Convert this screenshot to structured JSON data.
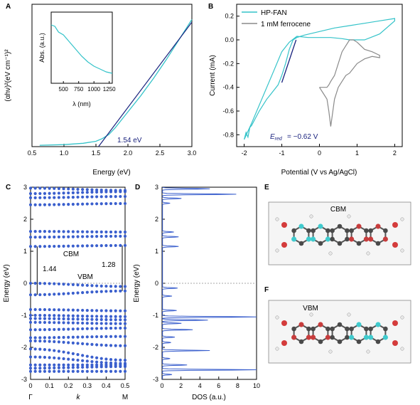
{
  "panels": {
    "A": "A",
    "B": "B",
    "C": "C",
    "D": "D",
    "E": "E",
    "F": "F"
  },
  "colors": {
    "cyan": "#34c3c9",
    "navy": "#1a237e",
    "gray": "#8a8a8a",
    "band_blue": "#3a5fcd",
    "carbon": "#4a4a4a",
    "oxygen": "#d43c3c",
    "hydrogen": "#e8e8e8",
    "orbital_cyan": "#40d8dc"
  },
  "chart_data": [
    {
      "id": "A",
      "type": "line",
      "xlabel": "Energy (eV)",
      "ylabel": "(αhν)²(eV cm⁻¹)²",
      "xlim": [
        0.5,
        3.0
      ],
      "xticks": [
        "0.5",
        "1.0",
        "1.5",
        "2.0",
        "2.5",
        "3.0"
      ],
      "annotation": "1.54 eV",
      "series": [
        {
          "x": [
            0.62,
            1.0,
            1.3,
            1.5,
            1.6,
            1.7,
            1.8,
            1.9,
            2.0,
            2.2,
            2.4,
            2.6,
            2.8,
            3.0
          ],
          "y": [
            0.01,
            0.015,
            0.025,
            0.04,
            0.06,
            0.09,
            0.14,
            0.2,
            0.26,
            0.38,
            0.51,
            0.65,
            0.8,
            0.95
          ]
        }
      ],
      "fit_line": {
        "x": [
          1.54,
          3.0
        ],
        "y": [
          0.0,
          0.93
        ]
      },
      "inset": {
        "ylabel": "Abs. (a.u.)",
        "xlabel": "λ (nm)",
        "xlim": [
          300,
          1300
        ],
        "xticks": [
          "500",
          "750",
          "1000",
          "1250"
        ],
        "x": [
          300,
          360,
          420,
          500,
          600,
          700,
          800,
          900,
          1000,
          1100,
          1200,
          1300
        ],
        "y": [
          0.82,
          0.8,
          0.72,
          0.68,
          0.58,
          0.48,
          0.38,
          0.3,
          0.24,
          0.2,
          0.16,
          0.14
        ]
      }
    },
    {
      "id": "B",
      "type": "line",
      "xlabel": "Potential (V vs Ag/AgCl)",
      "ylabel": "Current (mA)",
      "xlim": [
        -2.2,
        2.2
      ],
      "ylim": [
        -0.9,
        0.3
      ],
      "xticks": [
        "-2",
        "-1",
        "0",
        "1",
        "2"
      ],
      "yticks": [
        "-0.8",
        "-0.6",
        "-0.4",
        "-0.2",
        "0.0",
        "0.2"
      ],
      "annotation": "= −0.62 V",
      "legend": [
        "HP-FAN",
        "1 mM ferrocene"
      ],
      "series": [
        {
          "name": "HP-FAN",
          "x": [
            -2.0,
            -1.95,
            -1.9,
            -1.85,
            -1.8,
            -1.7,
            -1.6,
            -1.5,
            -1.4,
            -1.3,
            -1.2,
            -1.1,
            -1.0,
            -0.9,
            -0.8,
            -0.7,
            -0.6,
            -0.4,
            0.0,
            0.4,
            0.8,
            1.2,
            1.6,
            2.0,
            2.0,
            1.6,
            1.2,
            0.8,
            0.6,
            0.3,
            0.0,
            -0.3,
            -0.6,
            -0.8,
            -1.0,
            -1.2,
            -1.4,
            -1.6,
            -1.8,
            -2.0
          ],
          "y": [
            -0.84,
            -0.78,
            -0.82,
            -0.74,
            -0.72,
            -0.66,
            -0.6,
            -0.55,
            -0.5,
            -0.46,
            -0.42,
            -0.38,
            -0.3,
            -0.2,
            -0.08,
            0.0,
            0.02,
            0.04,
            0.07,
            0.1,
            0.12,
            0.14,
            0.16,
            0.18,
            0.16,
            0.05,
            0.0,
            0.0,
            0.01,
            0.02,
            0.02,
            0.02,
            0.03,
            -0.02,
            -0.1,
            -0.25,
            -0.4,
            -0.55,
            -0.7,
            -0.84
          ]
        },
        {
          "name": "1 mM ferrocene",
          "x": [
            0.0,
            0.1,
            0.2,
            0.25,
            0.3,
            0.4,
            0.5,
            0.6,
            0.7,
            0.8,
            0.9,
            1.0,
            1.2,
            1.4,
            1.6,
            1.6,
            1.4,
            1.2,
            1.0,
            0.9,
            0.8,
            0.7,
            0.6,
            0.5,
            0.4,
            0.3,
            0.25,
            0.2,
            0.1,
            0.0
          ],
          "y": [
            -0.4,
            -0.45,
            -0.5,
            -0.6,
            -0.73,
            -0.5,
            -0.4,
            -0.35,
            -0.3,
            -0.28,
            -0.24,
            -0.2,
            -0.16,
            -0.14,
            -0.15,
            -0.13,
            -0.1,
            -0.08,
            -0.02,
            0.0,
            0.0,
            -0.05,
            -0.1,
            -0.2,
            -0.3,
            -0.35,
            -0.38,
            -0.4,
            -0.4,
            -0.4
          ]
        }
      ],
      "fit_line": {
        "x": [
          -1.0,
          -0.62
        ],
        "y": [
          -0.36,
          0.0
        ]
      }
    },
    {
      "id": "C",
      "type": "scatter",
      "xlabel": "k",
      "ylabel": "Energy (eV)",
      "xlim": [
        0,
        0.5
      ],
      "ylim": [
        -3,
        3
      ],
      "xticks": [
        "0",
        "0.1",
        "0.2",
        "0.3",
        "0.4",
        "0.5"
      ],
      "yticks": [
        "-3",
        "-2",
        "-1",
        "0",
        "1",
        "2",
        "3"
      ],
      "sym_left": "Γ",
      "sym_right": "M",
      "labels": {
        "cbm": "CBM",
        "vbm": "VBM",
        "gap_left": "1.44",
        "gap_right": "1.28"
      },
      "bands": [
        {
          "start": 2.97,
          "end": 2.9
        },
        {
          "start": 2.8,
          "end": 2.86
        },
        {
          "start": 2.67,
          "end": 2.71
        },
        {
          "start": 2.45,
          "end": 2.49
        },
        {
          "start": 1.62,
          "end": 1.6
        },
        {
          "start": 1.44,
          "end": 1.47
        },
        {
          "start": 1.15,
          "end": 1.18
        },
        {
          "start": 0.0,
          "end": -0.1
        },
        {
          "start": -0.36,
          "end": -0.24
        },
        {
          "start": -0.82,
          "end": -0.86
        },
        {
          "start": -1.0,
          "end": -1.04
        },
        {
          "start": -1.1,
          "end": -1.14
        },
        {
          "start": -1.22,
          "end": -1.26
        },
        {
          "start": -1.45,
          "end": -1.4
        },
        {
          "start": -1.7,
          "end": -1.66
        },
        {
          "start": -1.8,
          "end": -1.95
        },
        {
          "start": -2.05,
          "end": -2.4
        },
        {
          "start": -2.3,
          "end": -2.5
        },
        {
          "start": -2.55,
          "end": -2.55
        },
        {
          "start": -2.65,
          "end": -2.6
        },
        {
          "start": -2.75,
          "end": -2.75
        }
      ]
    },
    {
      "id": "D",
      "type": "line",
      "xlabel": "DOS (a.u.)",
      "ylabel": "Energy (eV)",
      "xlim": [
        0,
        10
      ],
      "ylim": [
        -3,
        3
      ],
      "xticks": [
        "0",
        "2",
        "4",
        "6",
        "8",
        "10"
      ],
      "yticks": [
        "-3",
        "-2",
        "-1",
        "0",
        "1",
        "2",
        "3"
      ],
      "peaks": [
        {
          "e": 2.95,
          "h": 5.0
        },
        {
          "e": 2.78,
          "h": 7.8
        },
        {
          "e": 2.65,
          "h": 2.0
        },
        {
          "e": 2.5,
          "h": 0.8
        },
        {
          "e": 1.6,
          "h": 1.2
        },
        {
          "e": 1.45,
          "h": 1.7
        },
        {
          "e": 1.15,
          "h": 1.7
        },
        {
          "e": -0.15,
          "h": 1.6
        },
        {
          "e": -0.4,
          "h": 1.0
        },
        {
          "e": -0.85,
          "h": 1.5
        },
        {
          "e": -1.05,
          "h": 10.0
        },
        {
          "e": -1.15,
          "h": 4.8
        },
        {
          "e": -1.25,
          "h": 2.0
        },
        {
          "e": -1.45,
          "h": 3.2
        },
        {
          "e": -1.68,
          "h": 1.3
        },
        {
          "e": -1.85,
          "h": 0.9
        },
        {
          "e": -2.1,
          "h": 5.0
        },
        {
          "e": -2.35,
          "h": 0.8
        },
        {
          "e": -2.55,
          "h": 2.6
        },
        {
          "e": -2.7,
          "h": 10.0
        },
        {
          "e": -2.85,
          "h": 1.0
        }
      ]
    }
  ],
  "molecules": {
    "E": {
      "label": "CBM"
    },
    "F": {
      "label": "VBM"
    }
  }
}
